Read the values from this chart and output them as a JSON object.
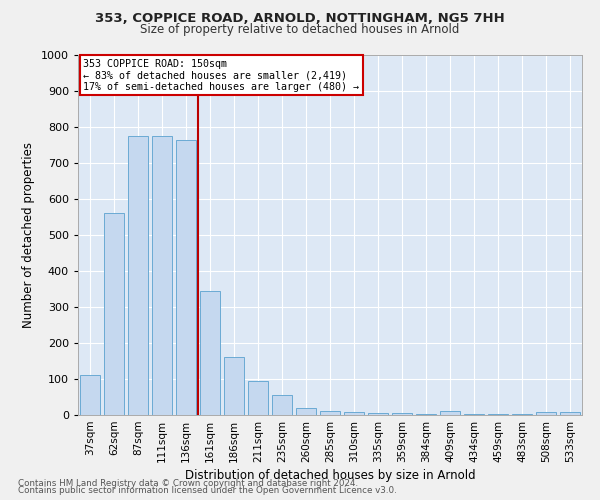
{
  "title1": "353, COPPICE ROAD, ARNOLD, NOTTINGHAM, NG5 7HH",
  "title2": "Size of property relative to detached houses in Arnold",
  "xlabel": "Distribution of detached houses by size in Arnold",
  "ylabel": "Number of detached properties",
  "categories": [
    "37sqm",
    "62sqm",
    "87sqm",
    "111sqm",
    "136sqm",
    "161sqm",
    "186sqm",
    "211sqm",
    "235sqm",
    "260sqm",
    "285sqm",
    "310sqm",
    "335sqm",
    "359sqm",
    "384sqm",
    "409sqm",
    "434sqm",
    "459sqm",
    "483sqm",
    "508sqm",
    "533sqm"
  ],
  "values": [
    110,
    560,
    775,
    775,
    765,
    345,
    160,
    95,
    55,
    20,
    12,
    8,
    5,
    5,
    3,
    10,
    2,
    2,
    2,
    8,
    8
  ],
  "bar_color": "#c5d8ef",
  "bar_edge_color": "#6aaad4",
  "vline_index": 4.5,
  "vline_color": "#bb0000",
  "annotation_title": "353 COPPICE ROAD: 150sqm",
  "annotation_line1": "← 83% of detached houses are smaller (2,419)",
  "annotation_line2": "17% of semi-detached houses are larger (480) →",
  "annotation_box_color": "#cc0000",
  "ylim": [
    0,
    1000
  ],
  "yticks": [
    0,
    100,
    200,
    300,
    400,
    500,
    600,
    700,
    800,
    900,
    1000
  ],
  "bg_color": "#dde8f5",
  "grid_color": "#ffffff",
  "fig_bg": "#f0f0f0",
  "footer1": "Contains HM Land Registry data © Crown copyright and database right 2024.",
  "footer2": "Contains public sector information licensed under the Open Government Licence v3.0."
}
